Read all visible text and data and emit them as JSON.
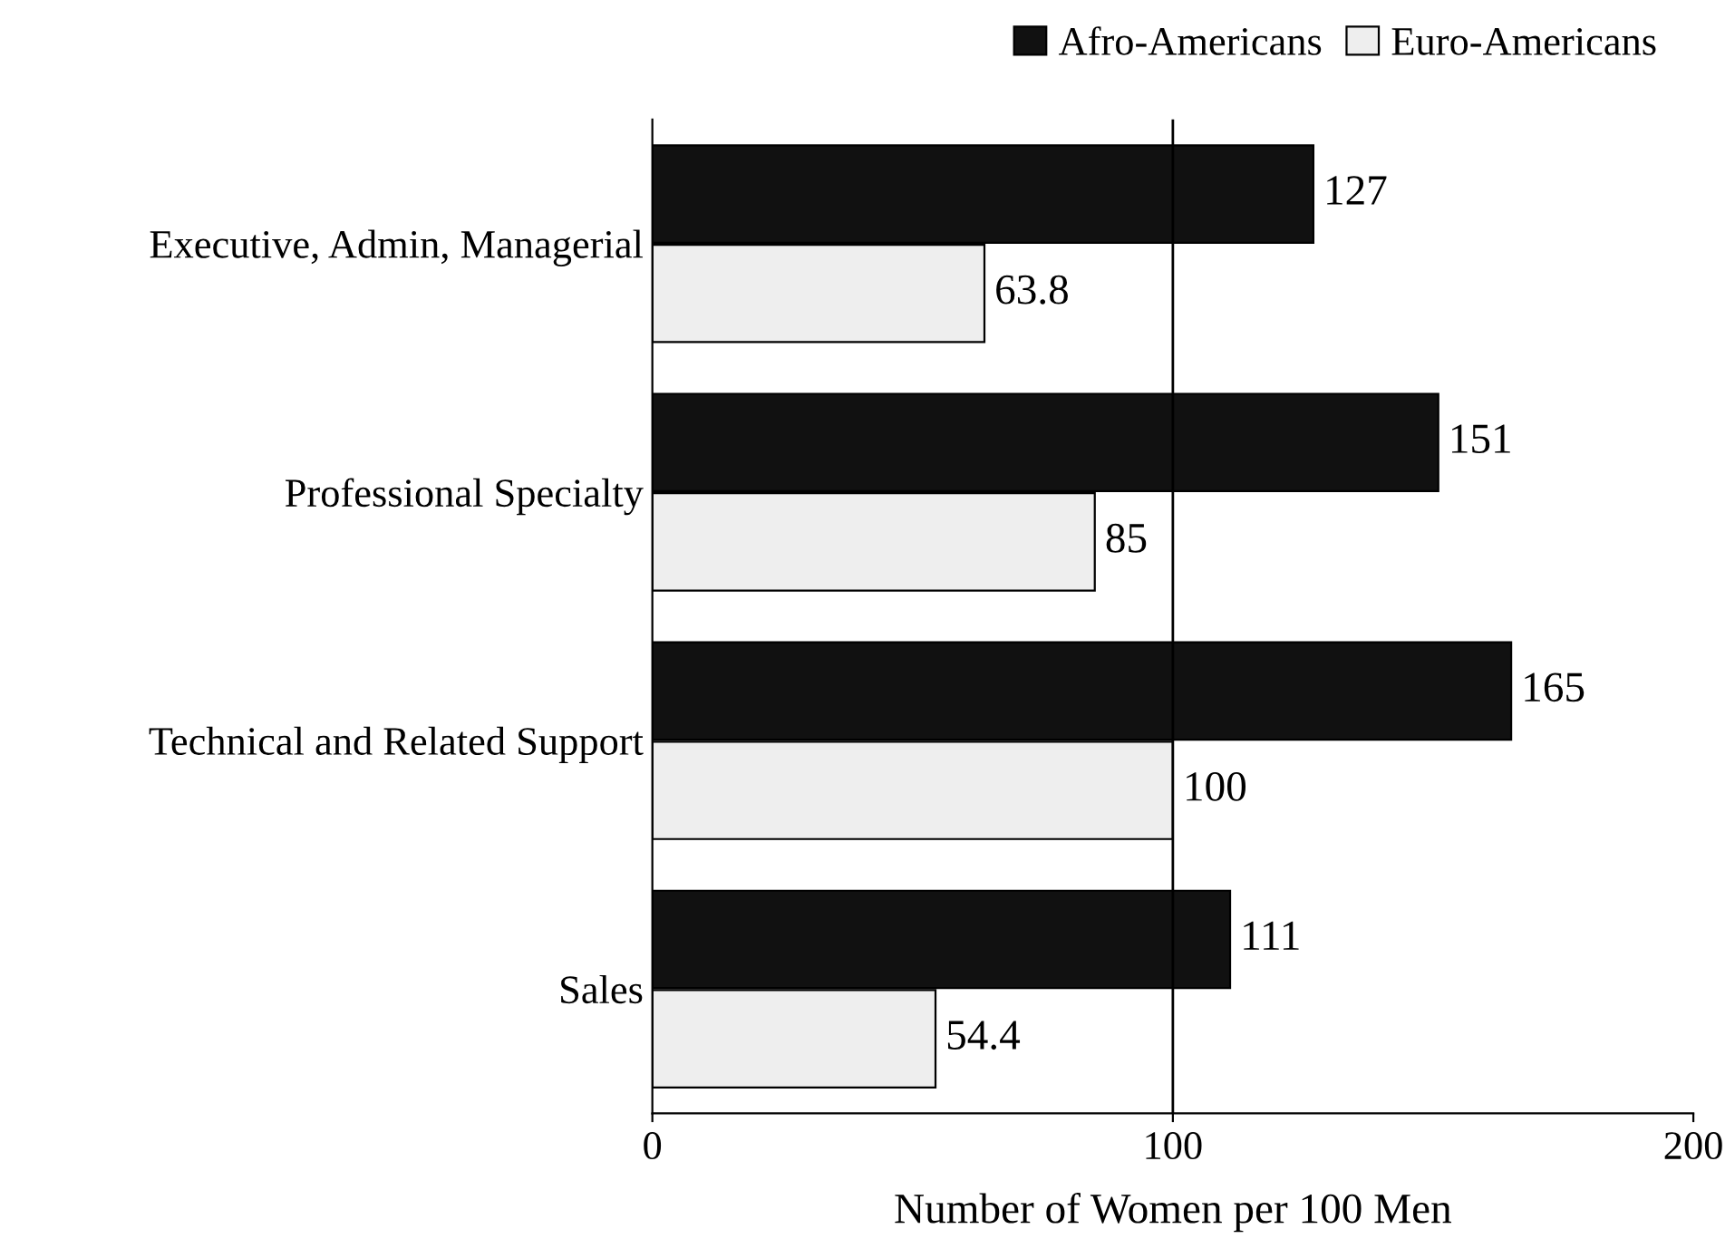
{
  "chart_data": {
    "type": "bar",
    "orientation": "horizontal",
    "xlabel": "Number of Women per 100 Men",
    "categories": [
      "Executive, Admin, Managerial",
      "Professional Specialty",
      "Technical and Related Support",
      "Sales"
    ],
    "series": [
      {
        "name": "Afro-Americans",
        "color": "#111111",
        "values": [
          127,
          151,
          165,
          111
        ]
      },
      {
        "name": "Euro-Americans",
        "color": "#eeeeee",
        "values": [
          63.8,
          85,
          100,
          54.4
        ]
      }
    ],
    "xlim": [
      0,
      200
    ],
    "xticks": [
      0,
      100,
      200
    ],
    "ref_lines": [
      {
        "axis": "x",
        "value": 100,
        "color": "#000000"
      }
    ],
    "data_labels": true,
    "grid": false,
    "legend": "top"
  }
}
